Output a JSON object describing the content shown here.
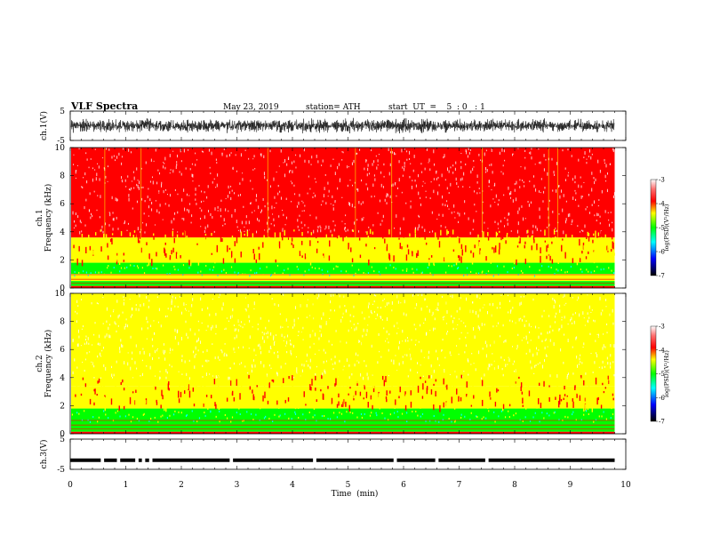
{
  "header": {
    "title": "VLF  Spectra",
    "date": "May 23, 2019",
    "station": "station= ATH",
    "start": "start  UT  =    5  : 0   : 1"
  },
  "chart_data": [
    {
      "type": "line",
      "name": "ch1-waveform",
      "ylabel": "ch.1(V)",
      "ylim": [
        -5,
        5
      ],
      "yticks": [
        "5",
        "-5"
      ],
      "xlim": [
        0,
        10
      ],
      "data_end_min": 9.8,
      "description_values": {
        "center_v": 0.0,
        "amplitude_v": 2.5
      }
    },
    {
      "type": "heatmap",
      "name": "ch1-spectrogram",
      "ylabel": "ch.1\nFrequency  (kHz)",
      "ylabel_line1": "ch.1",
      "ylabel_line2": "Frequency  (kHz)",
      "ylim": [
        0,
        10
      ],
      "yticks": [
        "0",
        "2",
        "4",
        "6",
        "8",
        "10"
      ],
      "xlim": [
        0,
        10
      ],
      "data_end_min": 9.8,
      "bands_khz": [
        {
          "from": 0.0,
          "to": 0.15,
          "log_psd": -3.2
        },
        {
          "from": 0.15,
          "to": 0.5,
          "log_psd": -4.9
        },
        {
          "from": 0.5,
          "to": 1.0,
          "log_psd": -4.2
        },
        {
          "from": 1.0,
          "to": 1.8,
          "log_psd": -4.9
        },
        {
          "from": 1.8,
          "to": 3.6,
          "log_psd": -4.2
        },
        {
          "from": 3.6,
          "to": 10.0,
          "log_psd": -3.4
        }
      ],
      "colorbar": {
        "label": "log(PSD)(V²/Hz)",
        "ticks": [
          "-3",
          "-4",
          "-5",
          "-6",
          "-7"
        ],
        "range": [
          -7,
          -3
        ]
      }
    },
    {
      "type": "heatmap",
      "name": "ch2-spectrogram",
      "ylabel": "ch.2\nFrequency  (kHz)",
      "ylabel_line1": "ch.2",
      "ylabel_line2": "Frequency  (kHz)",
      "ylim": [
        0,
        10
      ],
      "yticks": [
        "0",
        "2",
        "4",
        "6",
        "8",
        "10"
      ],
      "xlim": [
        0,
        10
      ],
      "data_end_min": 9.8,
      "bands_khz": [
        {
          "from": 0.0,
          "to": 0.15,
          "log_psd": -3.2
        },
        {
          "from": 0.15,
          "to": 0.6,
          "log_psd": -4.4
        },
        {
          "from": 0.6,
          "to": 1.8,
          "log_psd": -4.9
        },
        {
          "from": 1.8,
          "to": 3.4,
          "log_psd": -4.2
        },
        {
          "from": 3.4,
          "to": 10.0,
          "log_psd": -3.7
        }
      ],
      "colorbar": {
        "label": "log(PSD)(V²/Hz)",
        "ticks": [
          "-3",
          "-4",
          "-5",
          "-6",
          "-7"
        ],
        "range": [
          -7,
          -3
        ]
      }
    },
    {
      "type": "line",
      "name": "ch3-waveform",
      "ylabel": "ch.3(V)",
      "ylim": [
        -5,
        5
      ],
      "yticks": [
        "5",
        "-5"
      ],
      "xlim": [
        0,
        10
      ],
      "data_end_min": 9.8,
      "description_values": {
        "center_v": -2.0
      },
      "gaps_min": [
        0.58,
        0.87,
        1.2,
        1.32,
        1.45,
        2.9,
        4.4,
        5.85,
        6.6,
        7.5
      ]
    }
  ],
  "x_axis": {
    "label": "Time  (min)",
    "ticks": [
      "0",
      "1",
      "2",
      "3",
      "4",
      "5",
      "6",
      "7",
      "8",
      "9",
      "10"
    ]
  },
  "colors": {
    "red": "#ff0000",
    "yellow": "#ffff00",
    "green": "#00ff00",
    "cyan": "#00ffff",
    "blue": "#0000ff",
    "black": "#000000"
  }
}
